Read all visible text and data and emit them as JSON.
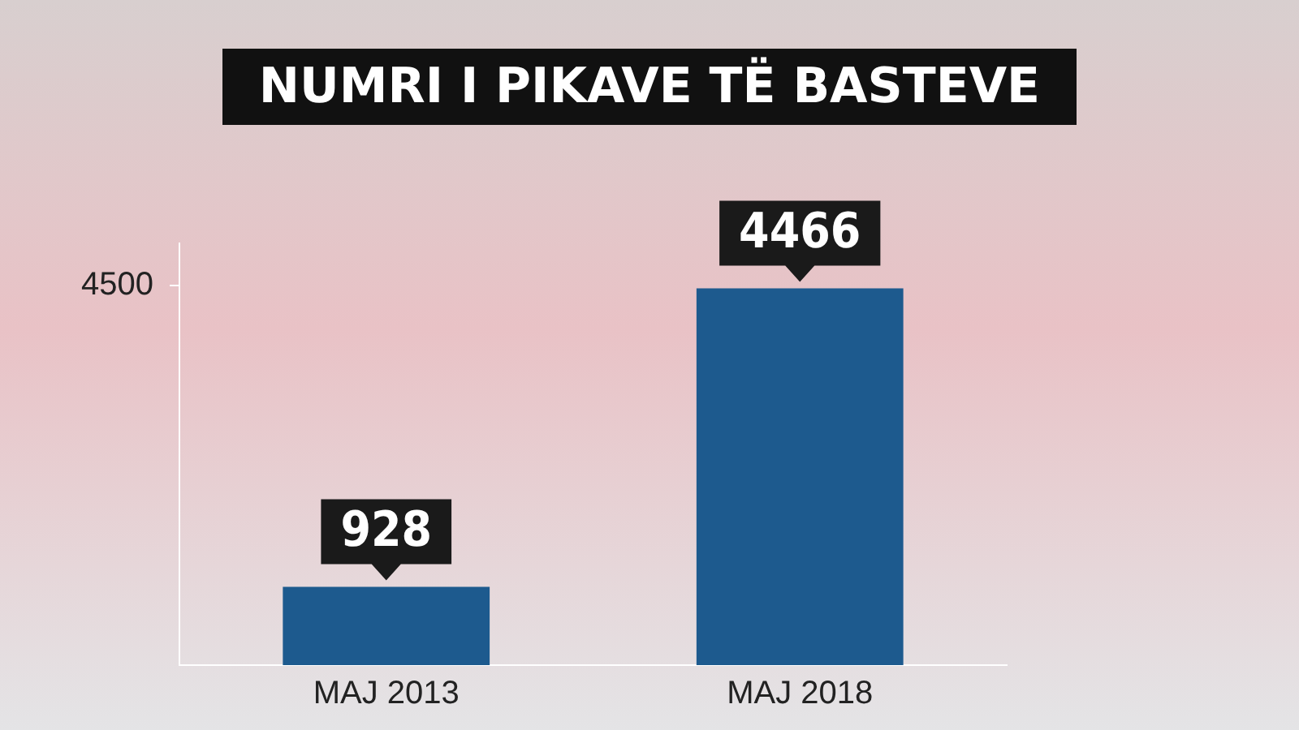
{
  "chart_data": {
    "type": "bar",
    "title": "NUMRI I PIKAVE TË BASTEVE",
    "categories": [
      "MAJ 2013",
      "MAJ 2018"
    ],
    "values": [
      928,
      4466
    ],
    "color": "#1d5a8e",
    "ylim": [
      0,
      5000
    ],
    "yticks": [
      4500
    ],
    "grid": false,
    "data_labels": true
  }
}
